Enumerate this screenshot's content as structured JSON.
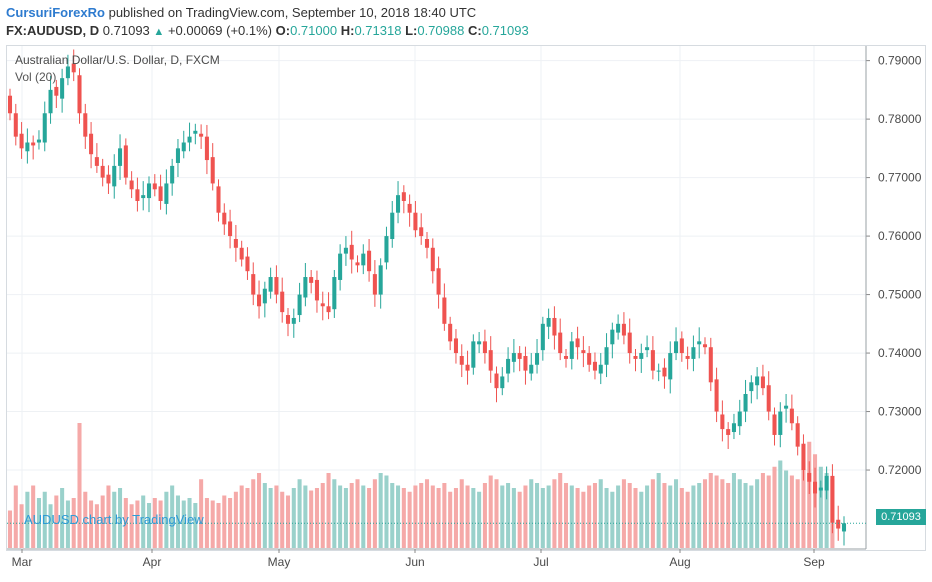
{
  "header": {
    "publisher": "CursuriForexRo",
    "published_text": "published on TradingView.com, September 10, 2018 18:40 UTC",
    "symbol": "FX:AUDUSD, D",
    "last": "0.71093",
    "change_arrow": "▲",
    "change": "+0.00069 (+0.1%)",
    "o_label": "O:",
    "o_value": "0.71000",
    "h_label": "H:",
    "h_value": "0.71318",
    "l_label": "L:",
    "l_value": "0.70988",
    "c_label": "C:",
    "c_value": "0.71093"
  },
  "legend": {
    "title": "Australian Dollar/U.S. Dollar, D, FXCM",
    "volume": "Vol (20)"
  },
  "watermark": "AUDUSD chart by TradingView",
  "current_price_tag": "0.71093",
  "colors": {
    "up": "#26a69a",
    "down": "#ef5350",
    "up_vol": "#9ad1cb",
    "down_vol": "#f5a9a8",
    "grid": "#eef1f4",
    "accent": "#2e7bcf"
  },
  "chart_data": {
    "type": "candlestick",
    "y_axis_ticks": [
      "0.79000",
      "0.78000",
      "0.77000",
      "0.76000",
      "0.75000",
      "0.74000",
      "0.73000",
      "0.72000"
    ],
    "x_axis_ticks": [
      "Mar",
      "Apr",
      "May",
      "Jun",
      "Jul",
      "Aug",
      "Sep"
    ],
    "ylim": [
      0.7065,
      0.7925
    ],
    "grid": true,
    "close_series": [
      0.781,
      0.777,
      0.775,
      0.776,
      0.7755,
      0.7765,
      0.781,
      0.785,
      0.784,
      0.787,
      0.789,
      0.788,
      0.781,
      0.777,
      0.774,
      0.772,
      0.77,
      0.769,
      0.772,
      0.775,
      0.77,
      0.768,
      0.766,
      0.767,
      0.769,
      0.768,
      0.766,
      0.769,
      0.772,
      0.775,
      0.776,
      0.777,
      0.778,
      0.777,
      0.773,
      0.769,
      0.764,
      0.762,
      0.76,
      0.758,
      0.756,
      0.754,
      0.75,
      0.748,
      0.751,
      0.753,
      0.75,
      0.747,
      0.745,
      0.746,
      0.75,
      0.753,
      0.752,
      0.749,
      0.748,
      0.747,
      0.753,
      0.757,
      0.758,
      0.756,
      0.755,
      0.757,
      0.754,
      0.75,
      0.755,
      0.76,
      0.764,
      0.767,
      0.766,
      0.764,
      0.761,
      0.76,
      0.758,
      0.754,
      0.75,
      0.745,
      0.742,
      0.74,
      0.738,
      0.737,
      0.742,
      0.742,
      0.74,
      0.737,
      0.734,
      0.736,
      0.739,
      0.74,
      0.739,
      0.737,
      0.738,
      0.74,
      0.745,
      0.746,
      0.743,
      0.74,
      0.739,
      0.742,
      0.741,
      0.74,
      0.738,
      0.737,
      0.738,
      0.741,
      0.744,
      0.745,
      0.743,
      0.74,
      0.739,
      0.74,
      0.741,
      0.737,
      0.737,
      0.736,
      0.74,
      0.742,
      0.74,
      0.739,
      0.741,
      0.742,
      0.741,
      0.735,
      0.73,
      0.727,
      0.726,
      0.728,
      0.73,
      0.733,
      0.735,
      0.736,
      0.734,
      0.73,
      0.726,
      0.73,
      0.731,
      0.728,
      0.724,
      0.72,
      0.718,
      0.716,
      0.717,
      0.719,
      0.711,
      0.71,
      0.7109
    ],
    "volume_series": [
      0.3,
      0.5,
      0.35,
      0.45,
      0.5,
      0.4,
      0.45,
      0.35,
      0.42,
      0.48,
      0.38,
      0.4,
      1.0,
      0.45,
      0.38,
      0.35,
      0.42,
      0.5,
      0.45,
      0.48,
      0.4,
      0.35,
      0.38,
      0.42,
      0.36,
      0.4,
      0.38,
      0.45,
      0.5,
      0.42,
      0.38,
      0.4,
      0.36,
      0.55,
      0.4,
      0.38,
      0.36,
      0.42,
      0.4,
      0.45,
      0.5,
      0.48,
      0.55,
      0.6,
      0.52,
      0.48,
      0.5,
      0.45,
      0.42,
      0.48,
      0.55,
      0.5,
      0.46,
      0.48,
      0.52,
      0.6,
      0.55,
      0.5,
      0.48,
      0.52,
      0.55,
      0.5,
      0.48,
      0.55,
      0.6,
      0.58,
      0.52,
      0.5,
      0.48,
      0.45,
      0.5,
      0.52,
      0.55,
      0.5,
      0.48,
      0.52,
      0.45,
      0.48,
      0.55,
      0.5,
      0.48,
      0.45,
      0.52,
      0.58,
      0.55,
      0.5,
      0.52,
      0.48,
      0.45,
      0.5,
      0.55,
      0.52,
      0.48,
      0.5,
      0.55,
      0.6,
      0.52,
      0.5,
      0.48,
      0.45,
      0.5,
      0.52,
      0.55,
      0.48,
      0.45,
      0.5,
      0.55,
      0.52,
      0.48,
      0.45,
      0.5,
      0.55,
      0.6,
      0.52,
      0.5,
      0.55,
      0.48,
      0.45,
      0.5,
      0.52,
      0.55,
      0.6,
      0.58,
      0.55,
      0.52,
      0.6,
      0.55,
      0.52,
      0.5,
      0.55,
      0.6,
      0.58,
      0.65,
      0.7,
      0.62,
      0.58,
      0.55,
      0.7,
      0.85,
      0.75,
      0.65,
      0.6,
      0.55
    ]
  }
}
